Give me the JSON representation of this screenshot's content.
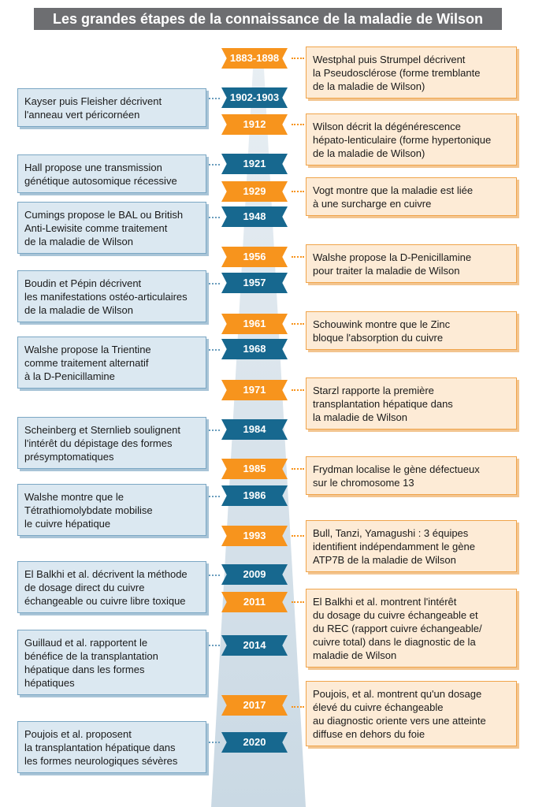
{
  "title": "Les grandes étapes de la connaissance de la maladie de Wilson",
  "colors": {
    "orange": "#f7941d",
    "blue": "#17688f",
    "title_bg": "#6d6e71"
  },
  "events": [
    {
      "year": "1883-1898",
      "side": "right",
      "text": "Westphal puis Strumpel décrivent\nla Pseudosclérose (forme tremblante\nde la maladie de Wilson)"
    },
    {
      "year": "1902-1903",
      "side": "left",
      "text": "Kayser puis Fleisher décrivent\nl'anneau vert péricornéen"
    },
    {
      "year": "1912",
      "side": "right",
      "text": "Wilson décrit la dégénérescence\nhépato-lenticulaire (forme hypertonique\nde la maladie de Wilson)"
    },
    {
      "year": "1921",
      "side": "left",
      "text": "Hall propose une transmission\ngénétique autosomique récessive"
    },
    {
      "year": "1929",
      "side": "right",
      "text": "Vogt montre que la maladie est liée\nà une surcharge en cuivre"
    },
    {
      "year": "1948",
      "side": "left",
      "text": "Cumings propose le BAL ou British\nAnti-Lewisite comme traitement\nde la maladie de Wilson"
    },
    {
      "year": "1956",
      "side": "right",
      "text": "Walshe propose la D-Penicillamine\npour traiter la maladie de Wilson"
    },
    {
      "year": "1957",
      "side": "left",
      "text": "Boudin et Pépin décrivent\nles manifestations ostéo-articulaires\nde la maladie de Wilson"
    },
    {
      "year": "1961",
      "side": "right",
      "text": "Schouwink montre que le Zinc\nbloque l'absorption du cuivre"
    },
    {
      "year": "1968",
      "side": "left",
      "text": "Walshe propose la Trientine\ncomme traitement alternatif\nà la D-Penicillamine"
    },
    {
      "year": "1971",
      "side": "right",
      "text": "Starzl rapporte la première\ntransplantation hépatique dans\nla maladie de Wilson"
    },
    {
      "year": "1984",
      "side": "left",
      "text": "Scheinberg et Sternlieb soulignent\nl'intérêt du dépistage des formes\nprésymptomatiques"
    },
    {
      "year": "1985",
      "side": "right",
      "text": "Frydman localise le gène défectueux\nsur le chromosome 13"
    },
    {
      "year": "1986",
      "side": "left",
      "text": "Walshe montre que le\nTétrathiomolybdate mobilise\nle cuivre hépatique"
    },
    {
      "year": "1993",
      "side": "right",
      "text": "Bull, Tanzi, Yamagushi : 3 équipes\nidentifient indépendamment le gène\nATP7B de la maladie de Wilson"
    },
    {
      "year": "2009",
      "side": "left",
      "text": "El Balkhi et al. décrivent la méthode\nde dosage direct du cuivre\néchangeable ou cuivre libre toxique"
    },
    {
      "year": "2011",
      "side": "right",
      "text": "El Balkhi et al. montrent l'intérêt\ndu dosage du cuivre échangeable et\ndu REC (rapport cuivre échangeable/\ncuivre total) dans le diagnostic de la\nmaladie de Wilson"
    },
    {
      "year": "2014",
      "side": "left",
      "text": "Guillaud et al. rapportent le\nbénéfice de la transplantation\nhépatique dans les formes\nhépatiques"
    },
    {
      "year": "2017",
      "side": "right",
      "text": "Poujois, et al. montrent qu'un dosage\nélevé du cuivre échangeable\nau diagnostic oriente vers une atteinte\ndiffuse en dehors du foie"
    },
    {
      "year": "2020",
      "side": "left",
      "text": "Poujois et al. proposent\nla transplantation hépatique dans\nles formes neurologiques sévères"
    }
  ]
}
